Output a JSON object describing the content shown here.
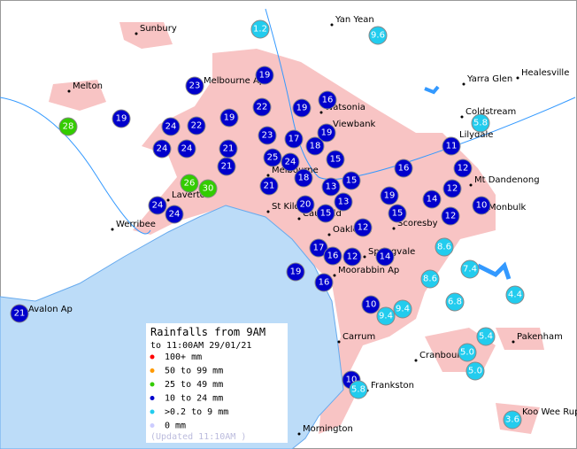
{
  "legend": {
    "title": "Rainfalls from 9AM",
    "subtitle": "to 11:00AM 29/01/21",
    "items": [
      {
        "label": "100+ mm",
        "color": "#ff0000"
      },
      {
        "label": "50  to 99 mm",
        "color": "#ff9900"
      },
      {
        "label": "25  to 49 mm",
        "color": "#33cc00"
      },
      {
        "label": "10  to 24 mm",
        "color": "#0000cc"
      },
      {
        "label": ">0.2 to 9 mm",
        "color": "#22ccee"
      },
      {
        "label": "0 mm",
        "color": "#ccccff"
      }
    ],
    "updated": "(Updated 11:10AM  )"
  },
  "places": [
    "Sunbury",
    "Yan Yean",
    "Melton",
    "Yarra Glen",
    "Healesville",
    "Melbourne Ap",
    "Watsonia",
    "Viewbank",
    "Coldstream",
    "Lilydale",
    "Mt Dandenong",
    "Monbulk",
    "Melbourne",
    "St Kilda",
    "Caulfield",
    "Oakleigh",
    "Scoresby",
    "Springvale",
    "Moorabbin Ap",
    "Laverton",
    "Werribee",
    "Avalon Ap",
    "Carrum",
    "Cranbourne",
    "Frankston",
    "Pakenham",
    "Mornington",
    "Koo Wee Rup"
  ],
  "stations": [
    {
      "value": 1.2,
      "color": "#22ccee"
    },
    {
      "value": 9.6,
      "color": "#22ccee"
    },
    {
      "value": 19,
      "color": "#0000cc"
    },
    {
      "value": 23,
      "color": "#0000cc"
    },
    {
      "value": 28,
      "color": "#33cc00"
    },
    {
      "value": 19,
      "color": "#0000cc"
    },
    {
      "value": 24,
      "color": "#0000cc"
    },
    {
      "value": 22,
      "color": "#0000cc"
    },
    {
      "value": 19,
      "color": "#0000cc"
    },
    {
      "value": 22,
      "color": "#0000cc"
    },
    {
      "value": 19,
      "color": "#0000cc"
    },
    {
      "value": 16,
      "color": "#0000cc"
    },
    {
      "value": 19,
      "color": "#0000cc"
    },
    {
      "value": 24,
      "color": "#0000cc"
    },
    {
      "value": 24,
      "color": "#0000cc"
    },
    {
      "value": 21,
      "color": "#0000cc"
    },
    {
      "value": 23,
      "color": "#0000cc"
    },
    {
      "value": 17,
      "color": "#0000cc"
    },
    {
      "value": 18,
      "color": "#0000cc"
    },
    {
      "value": 25,
      "color": "#0000cc"
    },
    {
      "value": 24,
      "color": "#0000cc"
    },
    {
      "value": 15,
      "color": "#0000cc"
    },
    {
      "value": 21,
      "color": "#0000cc"
    },
    {
      "value": 18,
      "color": "#0000cc"
    },
    {
      "value": 26,
      "color": "#33cc00"
    },
    {
      "value": 30,
      "color": "#33cc00"
    },
    {
      "value": 21,
      "color": "#0000cc"
    },
    {
      "value": 13,
      "color": "#0000cc"
    },
    {
      "value": 15,
      "color": "#0000cc"
    },
    {
      "value": 16,
      "color": "#0000cc"
    },
    {
      "value": 11,
      "color": "#0000cc"
    },
    {
      "value": 12,
      "color": "#0000cc"
    },
    {
      "value": 5.8,
      "color": "#22ccee"
    },
    {
      "value": 12,
      "color": "#0000cc"
    },
    {
      "value": 19,
      "color": "#0000cc"
    },
    {
      "value": 14,
      "color": "#0000cc"
    },
    {
      "value": 10,
      "color": "#0000cc"
    },
    {
      "value": 20,
      "color": "#0000cc"
    },
    {
      "value": 13,
      "color": "#0000cc"
    },
    {
      "value": 15,
      "color": "#0000cc"
    },
    {
      "value": 15,
      "color": "#0000cc"
    },
    {
      "value": 12,
      "color": "#0000cc"
    },
    {
      "value": 24,
      "color": "#0000cc"
    },
    {
      "value": 24,
      "color": "#0000cc"
    },
    {
      "value": 12,
      "color": "#0000cc"
    },
    {
      "value": 8.6,
      "color": "#22ccee"
    },
    {
      "value": 17,
      "color": "#0000cc"
    },
    {
      "value": 16,
      "color": "#0000cc"
    },
    {
      "value": 12,
      "color": "#0000cc"
    },
    {
      "value": 14,
      "color": "#0000cc"
    },
    {
      "value": 7.4,
      "color": "#22ccee"
    },
    {
      "value": 19,
      "color": "#0000cc"
    },
    {
      "value": 16,
      "color": "#0000cc"
    },
    {
      "value": 8.6,
      "color": "#22ccee"
    },
    {
      "value": 4.4,
      "color": "#22ccee"
    },
    {
      "value": 6.8,
      "color": "#22ccee"
    },
    {
      "value": 10,
      "color": "#0000cc"
    },
    {
      "value": 9.4,
      "color": "#22ccee"
    },
    {
      "value": 9.4,
      "color": "#22ccee"
    },
    {
      "value": 21,
      "color": "#0000cc"
    },
    {
      "value": 5.4,
      "color": "#22ccee"
    },
    {
      "value": 5,
      "label": "5.0",
      "color": "#22ccee"
    },
    {
      "value": 5,
      "label": "5.0",
      "color": "#22ccee"
    },
    {
      "value": 10,
      "color": "#0000cc"
    },
    {
      "value": 5.8,
      "color": "#22ccee"
    },
    {
      "value": 3.6,
      "color": "#22ccee"
    }
  ]
}
